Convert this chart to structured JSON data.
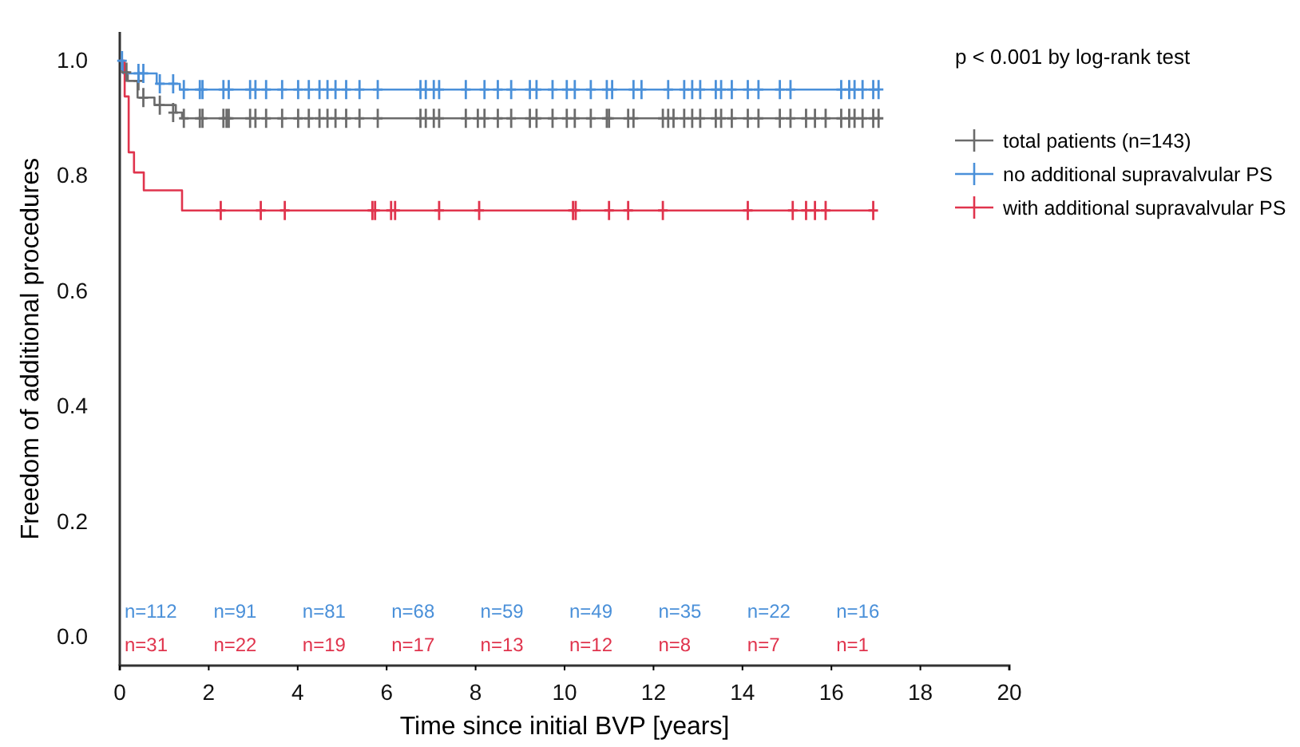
{
  "chart_data": {
    "type": "step",
    "xlabel": "Time since initial BVP [years]",
    "ylabel": "Freedom of additional procedures",
    "xlim": [
      0,
      20
    ],
    "xticks": [
      0,
      2,
      4,
      6,
      8,
      10,
      12,
      14,
      16,
      18,
      20
    ],
    "ylim": [
      -0.05,
      1.05
    ],
    "yticks": [
      {
        "value": 0,
        "label": "0.0"
      },
      {
        "value": 0.2,
        "label": "0.2"
      },
      {
        "value": 0.4,
        "label": "0.4"
      },
      {
        "value": 0.6,
        "label": "0.6"
      },
      {
        "value": 0.8,
        "label": "0.8"
      },
      {
        "value": 1,
        "label": "1.0"
      }
    ],
    "grid": false,
    "legend": "top right",
    "line_style": "solid",
    "series": [
      {
        "name": "total patients (n=143)",
        "color": "#6b6b6b",
        "x": [
          0,
          0.05,
          0.18,
          0.4,
          0.78,
          1.26,
          1.4,
          17.06
        ],
        "values": [
          1,
          0.98,
          0.965,
          0.936,
          0.923,
          0.91,
          0.9,
          0.9
        ]
      },
      {
        "name": "no additional supravalvular PS",
        "color": "#4a90d9",
        "x": [
          0,
          0.08,
          0.83,
          1.35,
          17.06
        ],
        "values": [
          1,
          0.978,
          0.96,
          0.95,
          0.95
        ]
      },
      {
        "name": "with additional supravalvular PS",
        "color": "#e0344d",
        "x": [
          0,
          0.11,
          0.2,
          0.32,
          0.54,
          1.4,
          16.94
        ],
        "values": [
          1,
          0.938,
          0.841,
          0.806,
          0.775,
          0.74,
          0.74
        ]
      },
      {
        "type": "scatter",
        "marker": "cross",
        "color": "#6b6b6b",
        "x": [
          0.15,
          0.42,
          0.53,
          0.9,
          1.2,
          1.44,
          1.8,
          1.86,
          2.33,
          2.4,
          2.45,
          2.93,
          3.05,
          3.29,
          3.65,
          4.01,
          4.25,
          4.49,
          4.67,
          4.85,
          5.09,
          5.39,
          5.8,
          6.76,
          6.88,
          7.06,
          7.18,
          7.78,
          8.05,
          8.2,
          8.5,
          8.8,
          9.22,
          9.37,
          9.73,
          10.05,
          10.23,
          10.59,
          10.95,
          11.0,
          11.43,
          11.55,
          12.21,
          12.33,
          12.45,
          12.69,
          12.87,
          13.05,
          13.4,
          13.52,
          13.76,
          14.12,
          14.36,
          14.84,
          15.08,
          15.43,
          15.63,
          15.87,
          16.22,
          16.4,
          16.52,
          16.7,
          16.94,
          17.06
        ],
        "values": [
          0.98,
          0.965,
          0.936,
          0.923,
          0.91,
          0.9,
          0.9,
          0.9,
          0.9,
          0.9,
          0.9,
          0.9,
          0.9,
          0.9,
          0.9,
          0.9,
          0.9,
          0.9,
          0.9,
          0.9,
          0.9,
          0.9,
          0.9,
          0.9,
          0.9,
          0.9,
          0.9,
          0.9,
          0.9,
          0.9,
          0.9,
          0.9,
          0.9,
          0.9,
          0.9,
          0.9,
          0.9,
          0.9,
          0.9,
          0.9,
          0.9,
          0.9,
          0.9,
          0.9,
          0.9,
          0.9,
          0.9,
          0.9,
          0.9,
          0.9,
          0.9,
          0.9,
          0.9,
          0.9,
          0.9,
          0.9,
          0.9,
          0.9,
          0.9,
          0.9,
          0.9,
          0.9,
          0.9,
          0.9
        ]
      },
      {
        "type": "scatter",
        "marker": "cross",
        "color": "#4a90d9",
        "x": [
          0.05,
          0.42,
          0.53,
          0.9,
          1.2,
          1.44,
          1.8,
          1.86,
          2.33,
          2.45,
          2.93,
          3.05,
          3.29,
          3.65,
          4.01,
          4.25,
          4.49,
          4.67,
          4.85,
          5.09,
          5.39,
          5.8,
          6.76,
          6.88,
          7.06,
          7.18,
          7.78,
          8.2,
          8.5,
          8.8,
          9.22,
          9.37,
          9.73,
          10.05,
          10.23,
          10.59,
          10.95,
          11.07,
          11.55,
          11.73,
          12.33,
          12.69,
          12.87,
          13.05,
          13.4,
          13.52,
          13.76,
          14.12,
          14.36,
          14.84,
          15.08,
          16.22,
          16.4,
          16.52,
          16.7,
          16.94,
          17.06
        ],
        "values": [
          1,
          0.978,
          0.978,
          0.96,
          0.96,
          0.95,
          0.95,
          0.95,
          0.95,
          0.95,
          0.95,
          0.95,
          0.95,
          0.95,
          0.95,
          0.95,
          0.95,
          0.95,
          0.95,
          0.95,
          0.95,
          0.95,
          0.95,
          0.95,
          0.95,
          0.95,
          0.95,
          0.95,
          0.95,
          0.95,
          0.95,
          0.95,
          0.95,
          0.95,
          0.95,
          0.95,
          0.95,
          0.95,
          0.95,
          0.95,
          0.95,
          0.95,
          0.95,
          0.95,
          0.95,
          0.95,
          0.95,
          0.95,
          0.95,
          0.95,
          0.95,
          0.95,
          0.95,
          0.95,
          0.95,
          0.95,
          0.95
        ]
      },
      {
        "type": "scatter",
        "marker": "cross",
        "color": "#e0344d",
        "x": [
          2.27,
          3.17,
          3.71,
          5.68,
          5.74,
          6.1,
          6.19,
          7.18,
          8.08,
          10.19,
          10.25,
          11.0,
          11.43,
          12.21,
          14.12,
          15.13,
          15.43,
          15.63,
          15.87,
          16.94
        ],
        "values": [
          0.74,
          0.74,
          0.74,
          0.74,
          0.74,
          0.74,
          0.74,
          0.74,
          0.74,
          0.74,
          0.74,
          0.74,
          0.74,
          0.74,
          0.74,
          0.74,
          0.74,
          0.74,
          0.74,
          0.74
        ]
      }
    ],
    "annotations": [
      "p < 0.001 by log-rank test",
      "n=112",
      "n=91",
      "n=81",
      "n=68",
      "n=59",
      "n=49",
      "n=35",
      "n=22",
      "n=16",
      "n=31",
      "n=22",
      "n=19",
      "n=17",
      "n=13",
      "n=12",
      "n=8",
      "n=7",
      "n=1"
    ]
  }
}
